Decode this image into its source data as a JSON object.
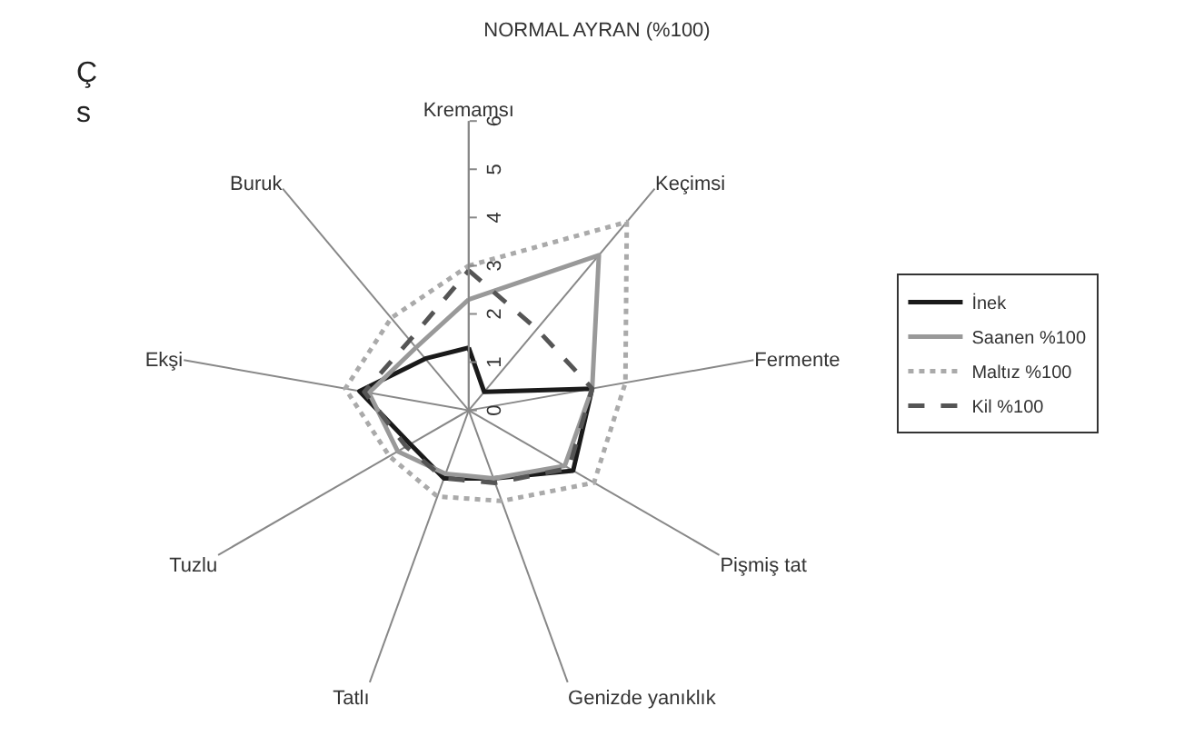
{
  "chart_data": {
    "type": "radar",
    "title": "NORMAL AYRAN (%100)",
    "categories": [
      "Kremamsı",
      "Keçimsi",
      "Fermente",
      "Pişmiş tat",
      "Genizde yanıklık",
      "Tatlı",
      "Tuzlu",
      "Ekşi",
      "Buruk"
    ],
    "series": [
      {
        "name": "İnek",
        "color": "#1a1a1a",
        "line_style": "solid",
        "values": [
          1.3,
          0.5,
          2.6,
          2.5,
          1.5,
          1.5,
          1.4,
          2.3,
          1.4
        ]
      },
      {
        "name": "Saanen %100",
        "color": "#999999",
        "line_style": "solid",
        "values": [
          2.3,
          4.2,
          2.6,
          2.3,
          1.5,
          1.4,
          1.7,
          2.1,
          1.7
        ]
      },
      {
        "name": "Maltız %100",
        "color": "#aaaaaa",
        "line_style": "dotted",
        "values": [
          3.0,
          5.1,
          3.3,
          3.0,
          2.0,
          1.9,
          1.9,
          2.6,
          2.5
        ]
      },
      {
        "name": "Kil %100",
        "color": "#555555",
        "line_style": "dashed",
        "values": [
          2.9,
          2.2,
          2.6,
          2.4,
          1.6,
          1.5,
          1.5,
          2.2,
          1.9
        ]
      }
    ],
    "ylim": [
      0,
      6
    ],
    "yticks": [
      0,
      1,
      2,
      3,
      4,
      5,
      6
    ],
    "grid": "x",
    "legend": "right",
    "marker": "none",
    "annotations": [
      "Ç",
      "s"
    ]
  }
}
